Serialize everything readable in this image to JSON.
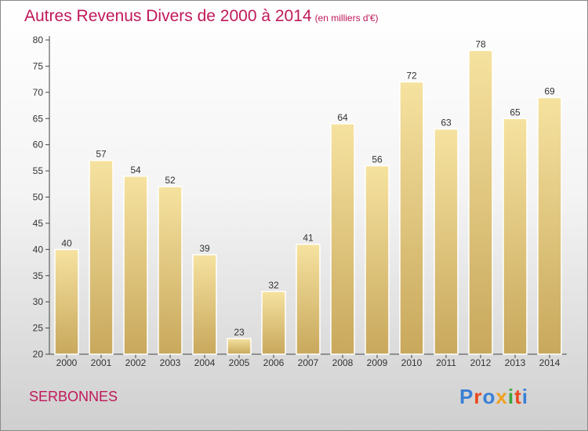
{
  "title": "Autres Revenus Divers de 2000 à 2014",
  "subtitle": "(en milliers d'€)",
  "place": "SERBONNES",
  "brand": {
    "text": "Proxiti",
    "colors": [
      "#3a7fd5",
      "#e8491c",
      "#3a7fd5",
      "#f0a020",
      "#3aa53a",
      "#e8491c",
      "#3a7fd5"
    ]
  },
  "colors": {
    "title": "#c0185a",
    "bar_light": "#f6e2a0",
    "bar_dark": "#c8a85c"
  },
  "chart_data": {
    "type": "bar",
    "title": "Autres Revenus Divers de 2000 à 2014",
    "subtitle": "(en milliers d'€)",
    "categories": [
      "2000",
      "2001",
      "2002",
      "2003",
      "2004",
      "2005",
      "2006",
      "2007",
      "2008",
      "2009",
      "2010",
      "2011",
      "2012",
      "2013",
      "2014"
    ],
    "values": [
      40,
      57,
      54,
      52,
      39,
      23,
      32,
      41,
      64,
      56,
      72,
      63,
      78,
      65,
      69
    ],
    "ylim": [
      20,
      80
    ],
    "yticks": [
      20,
      25,
      30,
      35,
      40,
      45,
      50,
      55,
      60,
      65,
      70,
      75,
      80
    ],
    "grid": false,
    "xlabel": "",
    "ylabel": ""
  }
}
